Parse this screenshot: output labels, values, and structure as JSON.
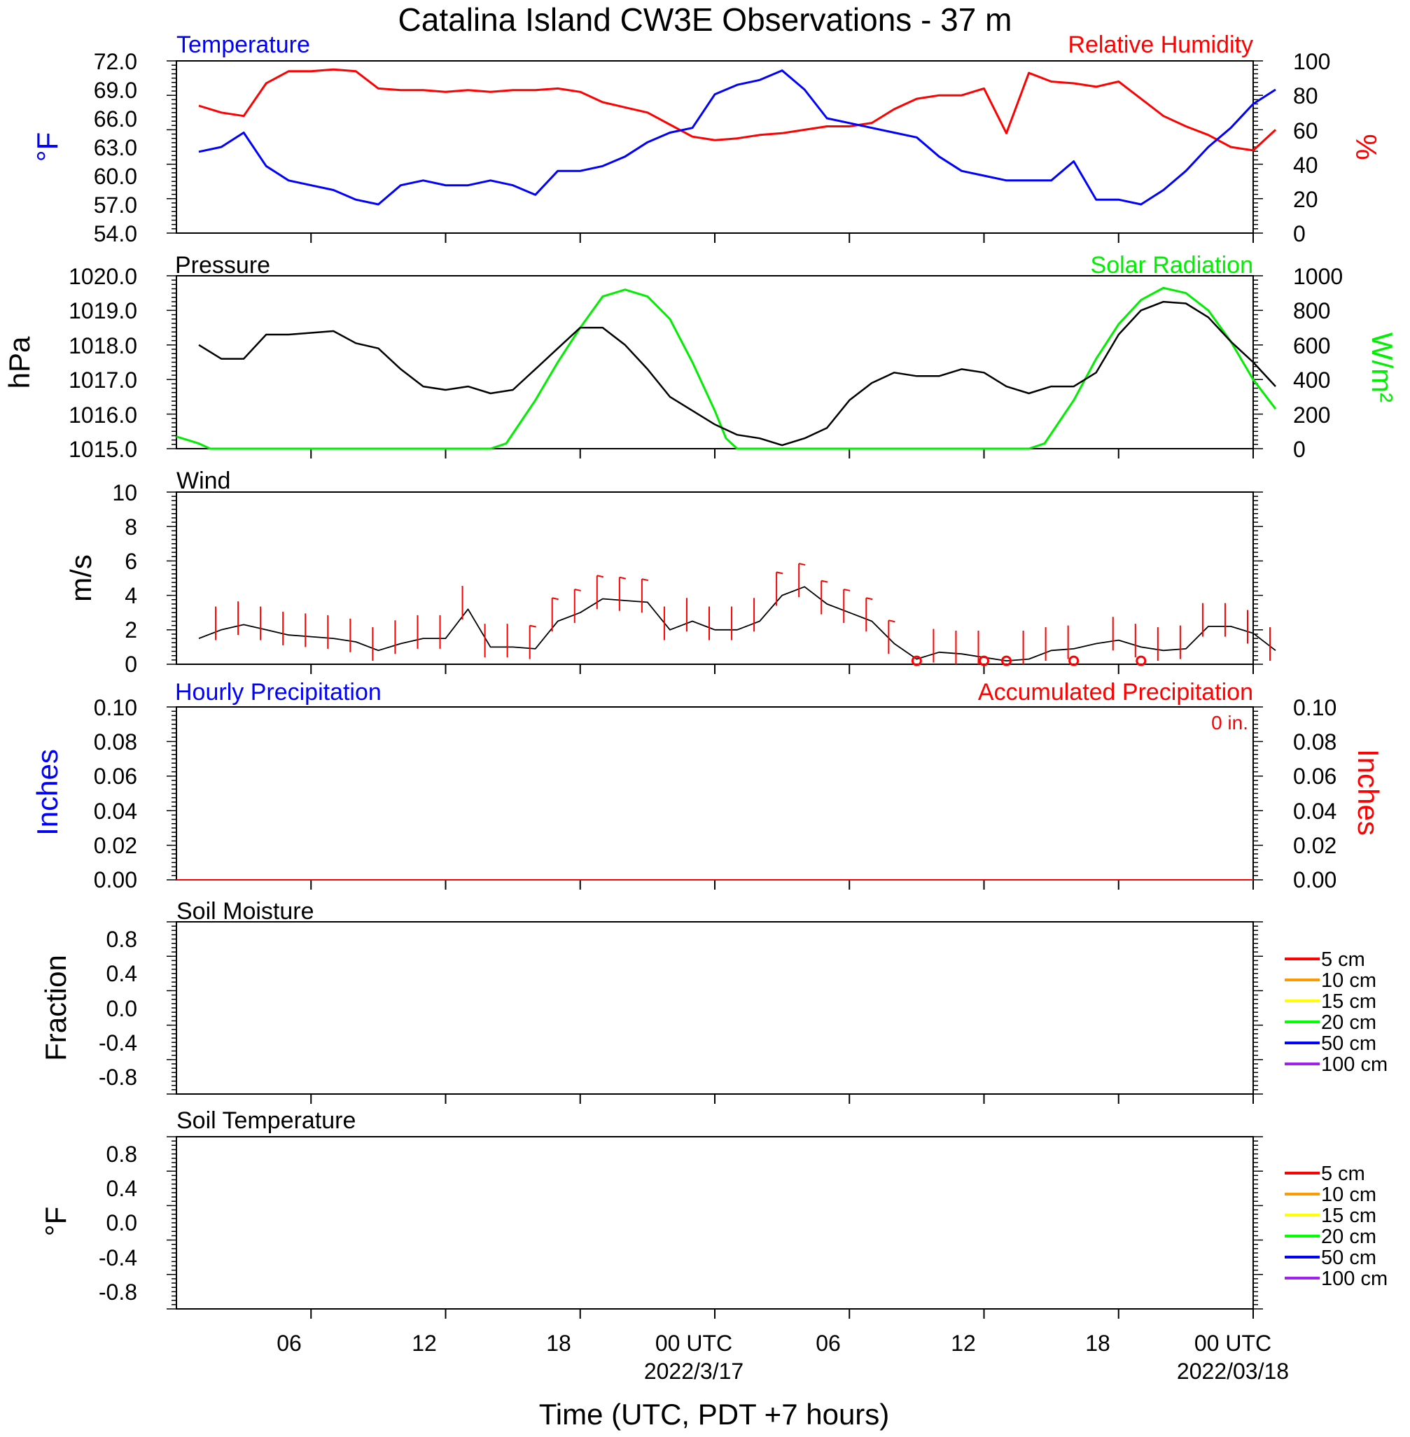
{
  "figure": {
    "title": "Catalina Island CW3E Observations - 37 m",
    "xlabel": "Time (UTC, PDT +7 hours)",
    "x_ticks": [
      "06",
      "12",
      "18",
      "00 UTC",
      "06",
      "12",
      "18",
      "00 UTC"
    ],
    "date_labels": [
      "2022/3/17",
      "2022/03/18"
    ]
  },
  "colors": {
    "blue": "#0000ff",
    "red": "#ff0000",
    "green": "#00ee00",
    "black": "#000000",
    "orange": "#ff9900",
    "yellow": "#ffff00",
    "bright_green": "#00ff00",
    "purple": "#a020f0"
  },
  "chart_data": [
    {
      "id": "temp_rh",
      "type": "line",
      "left_title": "Temperature",
      "right_title": "Relative Humidity",
      "ylabel_left": "°F",
      "ylabel_right": "%",
      "ylim_left": [
        54,
        72
      ],
      "ylim_right": [
        0,
        100
      ],
      "yticks_left": [
        "72.0",
        "69.0",
        "66.0",
        "63.0",
        "60.0",
        "57.0",
        "54.0"
      ],
      "yticks_right": [
        "100",
        "80",
        "60",
        "40",
        "20",
        "0"
      ],
      "x_hours": [
        1,
        2,
        3,
        4,
        5,
        6,
        7,
        8,
        9,
        10,
        11,
        12,
        13,
        14,
        15,
        16,
        17,
        18,
        19,
        20,
        21,
        22,
        23,
        24,
        25,
        26,
        27,
        28,
        29,
        30,
        31,
        32,
        33,
        34,
        35,
        36,
        37,
        38,
        39,
        40,
        41,
        42,
        43,
        44,
        45,
        46,
        47,
        48,
        49
      ],
      "series": [
        {
          "name": "Temperature",
          "axis": "left",
          "values": [
            62.5,
            63,
            64.5,
            61,
            59.5,
            59,
            58.5,
            57.5,
            57,
            59,
            59.5,
            59,
            59,
            59.5,
            59,
            58,
            60.5,
            60.5,
            61,
            62,
            63.5,
            64.5,
            65,
            68.5,
            69.5,
            70,
            71,
            69,
            66,
            65.5,
            65,
            64.5,
            64,
            62,
            60.5,
            60,
            59.5,
            59.5,
            59.5,
            61.5,
            57.5,
            57.5,
            57,
            58.5,
            60.5,
            63,
            65,
            67.5,
            69
          ]
        },
        {
          "name": "Relative Humidity",
          "axis": "right",
          "values": [
            74,
            70,
            68,
            87,
            94,
            94,
            95,
            94,
            84,
            83,
            83,
            82,
            83,
            82,
            83,
            83,
            84,
            82,
            76,
            73,
            70,
            63,
            56,
            54,
            55,
            57,
            58,
            60,
            62,
            62,
            64,
            72,
            78,
            80,
            80,
            84,
            58,
            93,
            88,
            87,
            85,
            88,
            78,
            68,
            62,
            57,
            50,
            48,
            60
          ]
        }
      ]
    },
    {
      "id": "pressure_solar",
      "type": "line",
      "left_title": "Pressure",
      "right_title": "Solar Radiation",
      "ylabel_left": "hPa",
      "ylabel_right": "W/m²",
      "ylim_left": [
        1015,
        1020
      ],
      "ylim_right": [
        0,
        1000
      ],
      "yticks_left": [
        "1020.0",
        "1019.0",
        "1018.0",
        "1017.0",
        "1016.0",
        "1015.0"
      ],
      "yticks_right": [
        "1000",
        "800",
        "600",
        "400",
        "200",
        "0"
      ],
      "series": [
        {
          "name": "Pressure",
          "axis": "left",
          "x_hours": [
            1,
            2,
            3,
            4,
            5,
            6,
            7,
            8,
            9,
            10,
            11,
            12,
            13,
            14,
            15,
            16,
            17,
            18,
            19,
            20,
            21,
            22,
            23,
            24,
            25,
            26,
            27,
            28,
            29,
            30,
            31,
            32,
            33,
            34,
            35,
            36,
            37,
            38,
            39,
            40,
            41,
            42,
            43,
            44,
            45,
            46,
            47,
            48,
            49
          ],
          "values": [
            1018,
            1017.6,
            1017.6,
            1018.3,
            1018.3,
            1018.35,
            1018.4,
            1018.05,
            1017.9,
            1017.3,
            1016.8,
            1016.7,
            1016.8,
            1016.6,
            1016.7,
            1017.3,
            1017.9,
            1018.5,
            1018.5,
            1018,
            1017.3,
            1016.5,
            1016.1,
            1015.7,
            1015.4,
            1015.3,
            1015.1,
            1015.3,
            1015.6,
            1016.4,
            1016.9,
            1017.2,
            1017.1,
            1017.1,
            1017.3,
            1017.2,
            1016.8,
            1016.6,
            1016.8,
            1016.8,
            1017.2,
            1018.3,
            1019,
            1019.25,
            1019.2,
            1018.8,
            1018.1,
            1017.5,
            1016.8
          ]
        },
        {
          "name": "Solar Radiation",
          "axis": "right",
          "x_hours": [
            0,
            1,
            1.5,
            14,
            14.7,
            16,
            17,
            18,
            19,
            20,
            21,
            22,
            23,
            24,
            24.5,
            25,
            38,
            38.7,
            40,
            41,
            42,
            43,
            44,
            45,
            46,
            47,
            48,
            49
          ],
          "values": [
            70,
            30,
            0,
            0,
            30,
            280,
            500,
            700,
            880,
            920,
            880,
            750,
            500,
            220,
            60,
            0,
            0,
            30,
            280,
            520,
            720,
            860,
            930,
            900,
            800,
            620,
            400,
            230
          ]
        }
      ]
    },
    {
      "id": "wind",
      "type": "line",
      "left_title": "Wind",
      "ylabel_left": "m/s",
      "ylim_left": [
        0,
        10
      ],
      "yticks_left": [
        "10",
        "8",
        "6",
        "4",
        "2",
        "0"
      ],
      "x_hours": [
        1,
        2,
        3,
        4,
        5,
        6,
        7,
        8,
        9,
        10,
        11,
        12,
        13,
        14,
        15,
        16,
        17,
        18,
        19,
        20,
        21,
        22,
        23,
        24,
        25,
        26,
        27,
        28,
        29,
        30,
        31,
        32,
        33,
        34,
        35,
        36,
        37,
        38,
        39,
        40,
        41,
        42,
        43,
        44,
        45,
        46,
        47,
        48,
        49
      ],
      "series": [
        {
          "name": "Wind speed",
          "values": [
            1.5,
            2,
            2.3,
            2,
            1.7,
            1.6,
            1.5,
            1.3,
            0.8,
            1.2,
            1.5,
            1.5,
            3.2,
            1,
            1,
            0.9,
            2.5,
            3,
            3.8,
            3.7,
            3.6,
            2,
            2.5,
            2,
            2,
            2.5,
            4,
            4.5,
            3.5,
            3,
            2.5,
            1.2,
            0.3,
            0.7,
            0.6,
            0.4,
            0.2,
            0.3,
            0.8,
            0.9,
            1.2,
            1.4,
            1.0,
            0.8,
            0.9,
            2.2,
            2.2,
            1.8,
            0.8
          ]
        }
      ],
      "barbs": {
        "x_hours": [
          2,
          3,
          4,
          5,
          6,
          7,
          8,
          9,
          10,
          11,
          12,
          13,
          14,
          15,
          16,
          17,
          18,
          19,
          20,
          21,
          22,
          23,
          24,
          25,
          26,
          27,
          28,
          29,
          30,
          31,
          32,
          34,
          35,
          36,
          38,
          39,
          40,
          42,
          43,
          44,
          45,
          46,
          47,
          48,
          49
        ],
        "flagged": [
          16,
          17,
          18,
          19,
          20,
          21,
          27,
          28,
          29,
          30,
          31,
          32
        ]
      },
      "calm_hours": [
        33,
        36,
        37,
        40,
        43
      ]
    },
    {
      "id": "precip",
      "type": "line",
      "left_title": "Hourly Precipitation",
      "right_title": "Accumulated Precipitation",
      "annotation": "0 in.",
      "ylabel_left": "Inches",
      "ylabel_right": "Inches",
      "ylim_left": [
        0,
        0.1
      ],
      "ylim_right": [
        0,
        0.1
      ],
      "yticks_left": [
        "0.10",
        "0.08",
        "0.06",
        "0.04",
        "0.02",
        "0.00"
      ],
      "yticks_right": [
        "0.10",
        "0.08",
        "0.06",
        "0.04",
        "0.02",
        "0.00"
      ],
      "series": [
        {
          "name": "Hourly Precipitation",
          "values": [
            0,
            0
          ]
        },
        {
          "name": "Accumulated Precipitation",
          "values": [
            0,
            0
          ]
        }
      ]
    },
    {
      "id": "soil_moisture",
      "type": "line",
      "left_title": "Soil Moisture",
      "ylabel_left": "Fraction",
      "ylim_left": [
        -1,
        1
      ],
      "yticks_left": [
        "0.8",
        "0.4",
        "0.0",
        "-0.4",
        "-0.8"
      ],
      "legend": [
        "5 cm",
        "10 cm",
        "15 cm",
        "20 cm",
        "50 cm",
        "100 cm"
      ],
      "series": []
    },
    {
      "id": "soil_temperature",
      "type": "line",
      "left_title": "Soil Temperature",
      "ylabel_left": "°F",
      "ylim_left": [
        -1,
        1
      ],
      "yticks_left": [
        "0.8",
        "0.4",
        "0.0",
        "-0.4",
        "-0.8"
      ],
      "legend": [
        "5 cm",
        "10 cm",
        "15 cm",
        "20 cm",
        "50 cm",
        "100 cm"
      ],
      "series": []
    }
  ]
}
